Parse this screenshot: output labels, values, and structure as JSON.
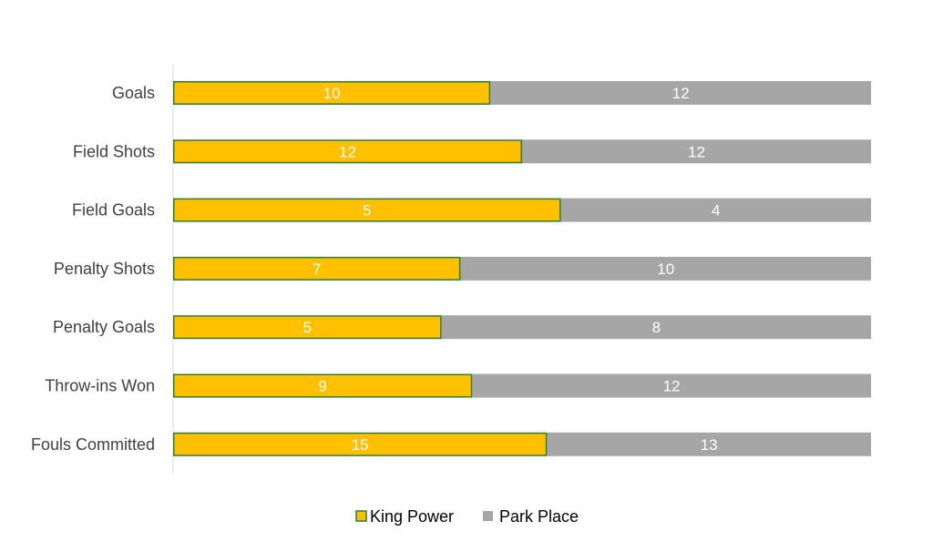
{
  "chart_data": {
    "type": "bar",
    "orientation": "horizontal",
    "stacked": "100%",
    "categories": [
      "Goals",
      "Field Shots",
      "Field Goals",
      "Penalty Shots",
      "Penalty Goals",
      "Throw-ins Won",
      "Fouls Committed"
    ],
    "series": [
      {
        "name": "King Power",
        "values": [
          10,
          12,
          5,
          7,
          5,
          9,
          15
        ],
        "color": "#FFC000",
        "border_color": "#2E7D32"
      },
      {
        "name": "Park Place",
        "values": [
          12,
          12,
          4,
          10,
          8,
          12,
          13
        ],
        "color": "#A6A6A6"
      }
    ],
    "title": "",
    "xlabel": "",
    "ylabel": "",
    "grid": false,
    "legend_position": "bottom",
    "data_labels": true
  }
}
